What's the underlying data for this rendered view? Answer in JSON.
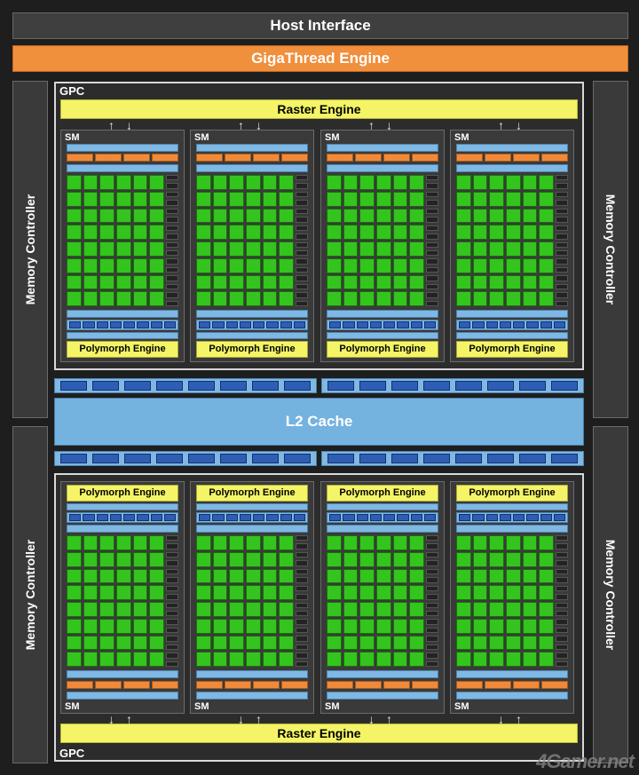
{
  "host_interface": "Host Interface",
  "gigathread": "GigaThread Engine",
  "memory_controller": "Memory Controller",
  "gpc_label": "GPC",
  "raster_engine": "Raster Engine",
  "sm_label": "SM",
  "polymorph_engine": "Polymorph Engine",
  "l2_cache": "L2 Cache",
  "watermark": "4Gamer.net",
  "colors": {
    "core": "#34c41e",
    "engine": "#f4f466",
    "cache": "#74b2e0",
    "giga": "#f08f3c",
    "texture": "#2e5eb4"
  }
}
